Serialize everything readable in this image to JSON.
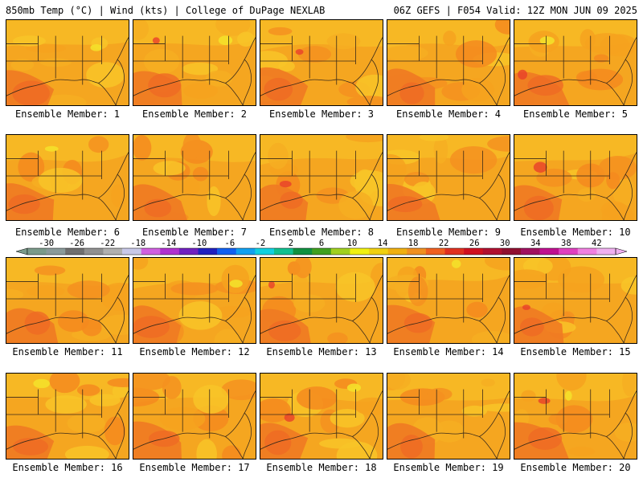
{
  "header": {
    "left": "850mb Temp (°C) | Wind (kts) | College of DuPage NEXLAB",
    "right": "06Z GEFS | F054 Valid: 12Z MON JUN 09 2025"
  },
  "members": [
    "Ensemble Member: 1",
    "Ensemble Member: 2",
    "Ensemble Member: 3",
    "Ensemble Member: 4",
    "Ensemble Member: 5",
    "Ensemble Member: 6",
    "Ensemble Member: 7",
    "Ensemble Member: 8",
    "Ensemble Member: 9",
    "Ensemble Member: 10",
    "Ensemble Member: 11",
    "Ensemble Member: 12",
    "Ensemble Member: 13",
    "Ensemble Member: 14",
    "Ensemble Member: 15",
    "Ensemble Member: 16",
    "Ensemble Member: 17",
    "Ensemble Member: 18",
    "Ensemble Member: 19",
    "Ensemble Member: 20"
  ],
  "colorbar": {
    "labels": [
      "-30",
      "-26",
      "-22",
      "-18",
      "-14",
      "-10",
      "-6",
      "-2",
      "2",
      "6",
      "10",
      "14",
      "18",
      "22",
      "26",
      "30",
      "34",
      "38",
      "42"
    ],
    "colors": [
      "#7a9a8a",
      "#8a9a9a",
      "#6f6f6f",
      "#909090",
      "#b0b0b0",
      "#c8c8e8",
      "#d060e0",
      "#b030d0",
      "#7020c0",
      "#2020c0",
      "#1060f0",
      "#10a0f0",
      "#10d0e0",
      "#10c090",
      "#109040",
      "#40a020",
      "#a0d020",
      "#f0f010",
      "#f0d010",
      "#f0b010",
      "#f09020",
      "#f06020",
      "#e03020",
      "#d01020",
      "#b01030",
      "#901030",
      "#a01060",
      "#c01090",
      "#e040c0",
      "#f080e0",
      "#f0b0f0"
    ]
  }
}
